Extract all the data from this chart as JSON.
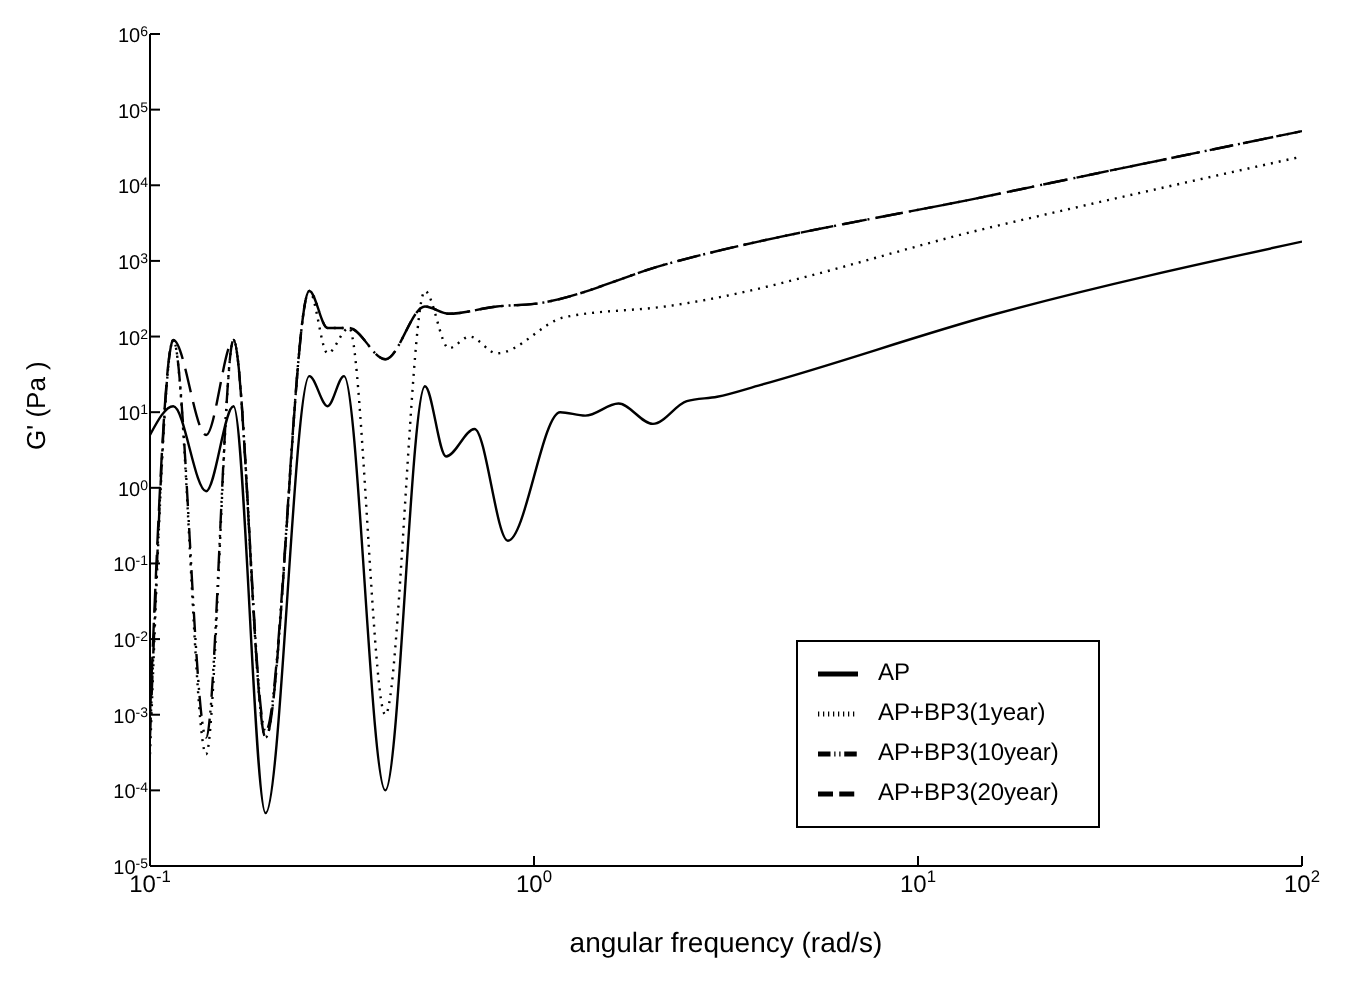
{
  "chart_data": {
    "type": "line",
    "xlabel": "angular frequency (rad/s)",
    "ylabel": "G' (Pa )",
    "log": "xy",
    "grid": false,
    "legend": "bottom right",
    "marker": "none",
    "xlim": [
      0.1,
      100
    ],
    "xticks": [
      {
        "value": 0.1,
        "label": "10$^{-1}$"
      },
      {
        "value": 1,
        "label": "10$^{0}$"
      },
      {
        "value": 10,
        "label": "10$^{1}$"
      },
      {
        "value": 100,
        "label": "10$^{2}$"
      }
    ],
    "ylim": [
      1e-05,
      1000000
    ],
    "yticks": [
      {
        "value": 1e-05,
        "label": "10$^{-5}$"
      },
      {
        "value": 0.0001,
        "label": "10$^{-4}$"
      },
      {
        "value": 0.001,
        "label": "10$^{-3}$"
      },
      {
        "value": 0.01,
        "label": "10$^{-2}$"
      },
      {
        "value": 0.1,
        "label": "10$^{-1}$"
      },
      {
        "value": 1,
        "label": "10$^{0}$"
      },
      {
        "value": 10,
        "label": "10$^{1}$"
      },
      {
        "value": 100,
        "label": "10$^{2}$"
      },
      {
        "value": 1000,
        "label": "10$^{3}$"
      },
      {
        "value": 10000,
        "label": "10$^{4}$"
      },
      {
        "value": 100000,
        "label": "10$^{5}$"
      },
      {
        "value": 1000000,
        "label": "10$^{6}$"
      }
    ],
    "series": [
      {
        "name": "AP",
        "color": "#000000",
        "line_style": "solid",
        "x": [
          0.1,
          0.115,
          0.14,
          0.165,
          0.2,
          0.26,
          0.29,
          0.32,
          0.41,
          0.52,
          0.59,
          0.7,
          0.855,
          1.17,
          1.36,
          1.66,
          2.04,
          2.5,
          3.0,
          3.9,
          16,
          100
        ],
        "values": [
          5,
          12,
          0.9,
          12,
          5e-05,
          30,
          12,
          30,
          0.0001,
          22,
          2.6,
          6,
          0.2,
          10,
          9,
          13,
          7,
          14,
          16,
          23,
          200,
          1800
        ]
      },
      {
        "name": "AP+BP3(1year)",
        "color": "#000000",
        "line_style": "dotted",
        "x": [
          0.1,
          0.115,
          0.14,
          0.165,
          0.2,
          0.26,
          0.29,
          0.33,
          0.41,
          0.52,
          0.6,
          0.68,
          0.8,
          1.2,
          2.2,
          16,
          100
        ],
        "values": [
          0.0003,
          90,
          0.0003,
          90,
          0.0005,
          400,
          60,
          130,
          0.001,
          400,
          70,
          100,
          60,
          180,
          250,
          2900,
          24000
        ]
      },
      {
        "name": "AP+BP3(10year)",
        "color": "#000000",
        "line_style": "dashdot",
        "x": [
          0.1,
          0.115,
          0.14,
          0.165,
          0.2,
          0.26,
          0.29,
          0.33,
          0.41,
          0.52,
          0.6,
          0.8,
          1.0,
          2.2,
          16,
          100
        ],
        "values": [
          0.0005,
          90,
          0.0005,
          90,
          0.0006,
          400,
          130,
          130,
          50,
          250,
          200,
          250,
          270,
          900,
          7600,
          52000
        ]
      },
      {
        "name": "AP+BP3(20year)",
        "color": "#000000",
        "line_style": "dashed",
        "x": [
          0.1,
          0.115,
          0.14,
          0.165,
          0.2,
          0.26,
          0.29,
          0.33,
          0.41,
          0.52,
          0.6,
          0.8,
          1.0,
          2.2,
          16,
          100
        ],
        "values": [
          0.001,
          90,
          5,
          90,
          0.0005,
          400,
          130,
          130,
          50,
          250,
          200,
          250,
          270,
          900,
          7600,
          52000
        ]
      }
    ]
  }
}
